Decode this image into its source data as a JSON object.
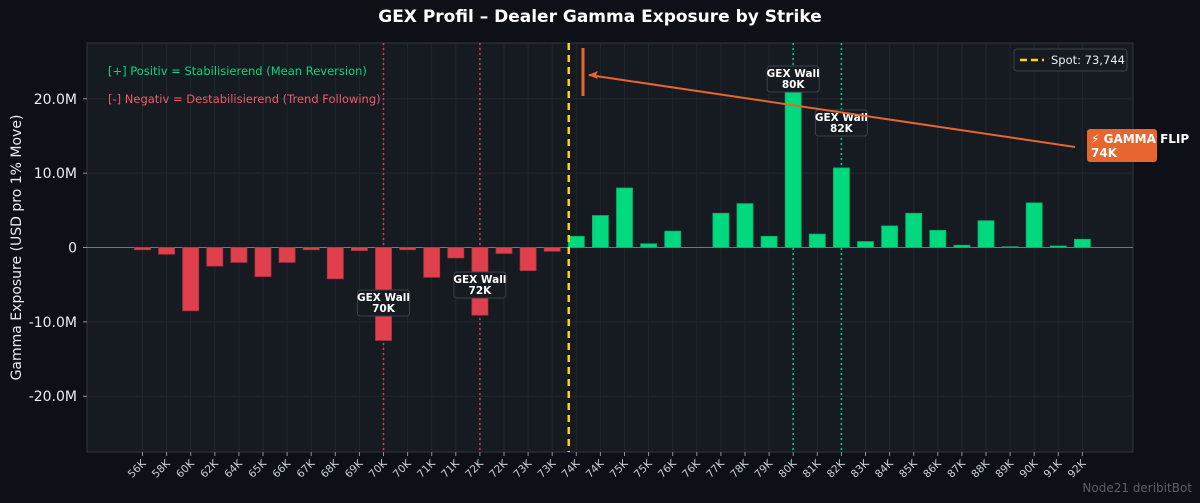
{
  "chart_data": {
    "type": "bar",
    "title": "GEX Profil – Dealer Gamma Exposure by Strike",
    "ylabel": "Gamma Exposure (USD pro 1% Move)",
    "xlabel": "",
    "ylim": [
      -27.5,
      27.5
    ],
    "y_unit": "M",
    "yticks": [
      -20,
      -10,
      0,
      10,
      20
    ],
    "ytick_labels": [
      "-20.0M",
      "-10.0M",
      "0",
      "10.0M",
      "20.0M"
    ],
    "categories": [
      "56K",
      "58K",
      "60K",
      "62K",
      "64K",
      "65K",
      "66K",
      "67K",
      "68K",
      "69K",
      "70K",
      "70K",
      "71K",
      "71K",
      "72K",
      "72K",
      "73K",
      "73K",
      "74K",
      "74K",
      "75K",
      "75K",
      "76K",
      "76K",
      "77K",
      "78K",
      "79K",
      "80K",
      "81K",
      "82K",
      "83K",
      "84K",
      "85K",
      "86K",
      "87K",
      "88K",
      "89K",
      "90K",
      "91K",
      "92K"
    ],
    "values": [
      -0.3,
      -0.9,
      -8.5,
      -2.5,
      -2.0,
      -3.9,
      -2.0,
      -0.3,
      -4.2,
      -0.4,
      -12.5,
      -0.3,
      -4.0,
      -1.4,
      -9.1,
      -0.8,
      -3.1,
      -0.5,
      1.5,
      4.3,
      8.0,
      0.5,
      2.2,
      0,
      4.6,
      5.9,
      1.5,
      21.0,
      1.8,
      10.7,
      0.8,
      2.9,
      4.6,
      2.3,
      0.3,
      3.6,
      0.1,
      6.0,
      0.2,
      1.1
    ],
    "colors": {
      "positive": "#00d97e",
      "negative": "#e0404e",
      "spot": "#ffd60a",
      "flip": "#e8652f",
      "pos_wall": "#00d97e",
      "neg_wall": "#e0404e",
      "background": "#0d1117",
      "plot_bg": "#161b22"
    },
    "spot": {
      "label": "Spot: 73,744",
      "index": 17.5
    },
    "gex_walls": [
      {
        "index": 10,
        "line1": "GEX Wall",
        "line2": "70K",
        "sign": "negative"
      },
      {
        "index": 14,
        "line1": "GEX Wall",
        "line2": "72K",
        "sign": "negative"
      },
      {
        "index": 27,
        "line1": "GEX Wall",
        "line2": "80K",
        "sign": "positive"
      },
      {
        "index": 29,
        "line1": "GEX Wall",
        "line2": "82K",
        "sign": "positive"
      }
    ],
    "gamma_flip": {
      "line1": "⚡ GAMMA FLIP",
      "line2": "74K",
      "index": 18.05
    },
    "annotations": [
      {
        "text": "[+] Positiv = Stabilisierend (Mean Reversion)",
        "sign": "positive"
      },
      {
        "text": "[-] Negativ = Destabilisierend (Trend Following)",
        "sign": "negative"
      }
    ],
    "legend": {
      "position": "top-right",
      "entries": [
        "Spot: 73,744"
      ]
    },
    "grid": true
  },
  "footer": {
    "watermark": "Node21 deribitBot"
  }
}
